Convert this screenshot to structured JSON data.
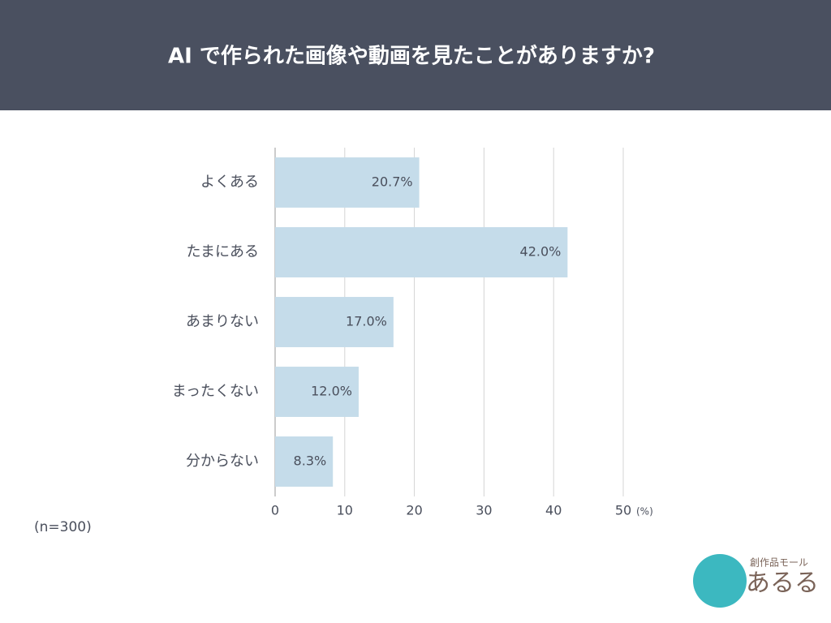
{
  "chart_data": {
    "type": "bar",
    "orientation": "horizontal",
    "title": "AI で作られた画像や動画を見たことがありますか?",
    "categories": [
      "よくある",
      "たまにある",
      "あまりない",
      "まったくない",
      "分からない"
    ],
    "values": [
      20.7,
      42.0,
      17.0,
      12.0,
      8.3
    ],
    "value_labels": [
      "20.7%",
      "42.0%",
      "17.0%",
      "12.0%",
      "8.3%"
    ],
    "color": "#c5dcea",
    "xlim": [
      0,
      50
    ],
    "xticks": [
      0,
      10,
      20,
      30,
      40,
      50
    ],
    "x_unit": "(%)",
    "grid": true,
    "note": "(n=300)"
  },
  "logo": {
    "tagline": "創作品モール",
    "name": "あるる"
  }
}
